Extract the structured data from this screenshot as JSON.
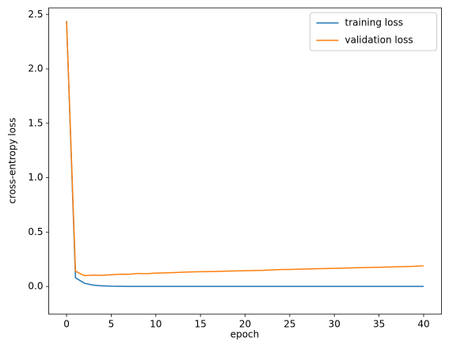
{
  "chart_data": {
    "type": "line",
    "x_label": "epoch",
    "y_label": "cross-entropy loss",
    "x": [
      0,
      1,
      2,
      3,
      4,
      5,
      6,
      7,
      8,
      9,
      10,
      11,
      12,
      13,
      14,
      15,
      16,
      17,
      18,
      19,
      20,
      21,
      22,
      23,
      24,
      25,
      26,
      27,
      28,
      29,
      30,
      31,
      32,
      33,
      34,
      35,
      36,
      37,
      38,
      39,
      40
    ],
    "series": [
      {
        "name": "training loss",
        "color": "#1f77b4",
        "values": [
          2.44,
          0.08,
          0.03,
          0.012,
          0.006,
          0.003,
          0.002,
          0.0015,
          0.001,
          0.001,
          0.001,
          0.001,
          0.001,
          0.001,
          0.001,
          0.001,
          0.001,
          0.001,
          0.001,
          0.001,
          0.001,
          0.001,
          0.001,
          0.001,
          0.001,
          0.001,
          0.001,
          0.001,
          0.001,
          0.001,
          0.001,
          0.001,
          0.001,
          0.001,
          0.001,
          0.001,
          0.001,
          0.001,
          0.001,
          0.001,
          0.001
        ]
      },
      {
        "name": "validation loss",
        "color": "#ff7f0e",
        "values": [
          2.44,
          0.14,
          0.1,
          0.105,
          0.103,
          0.108,
          0.113,
          0.112,
          0.12,
          0.118,
          0.123,
          0.125,
          0.128,
          0.131,
          0.134,
          0.136,
          0.137,
          0.139,
          0.141,
          0.143,
          0.145,
          0.147,
          0.149,
          0.152,
          0.156,
          0.157,
          0.159,
          0.161,
          0.163,
          0.165,
          0.167,
          0.169,
          0.171,
          0.173,
          0.175,
          0.177,
          0.179,
          0.181,
          0.183,
          0.186,
          0.19
        ]
      }
    ],
    "xlim": [
      -2,
      42
    ],
    "ylim": [
      -0.254,
      2.56
    ],
    "xticks": [
      0,
      5,
      10,
      15,
      20,
      25,
      30,
      35,
      40
    ],
    "yticks": [
      {
        "value": 0,
        "label": "0.0"
      },
      {
        "value": 0.5,
        "label": "0.5"
      },
      {
        "value": 1,
        "label": "1.0"
      },
      {
        "value": 1.5,
        "label": "1.5"
      },
      {
        "value": 2,
        "label": "2.0"
      },
      {
        "value": 2.5,
        "label": "2.5"
      }
    ],
    "legend": "upper right",
    "grid": false
  }
}
